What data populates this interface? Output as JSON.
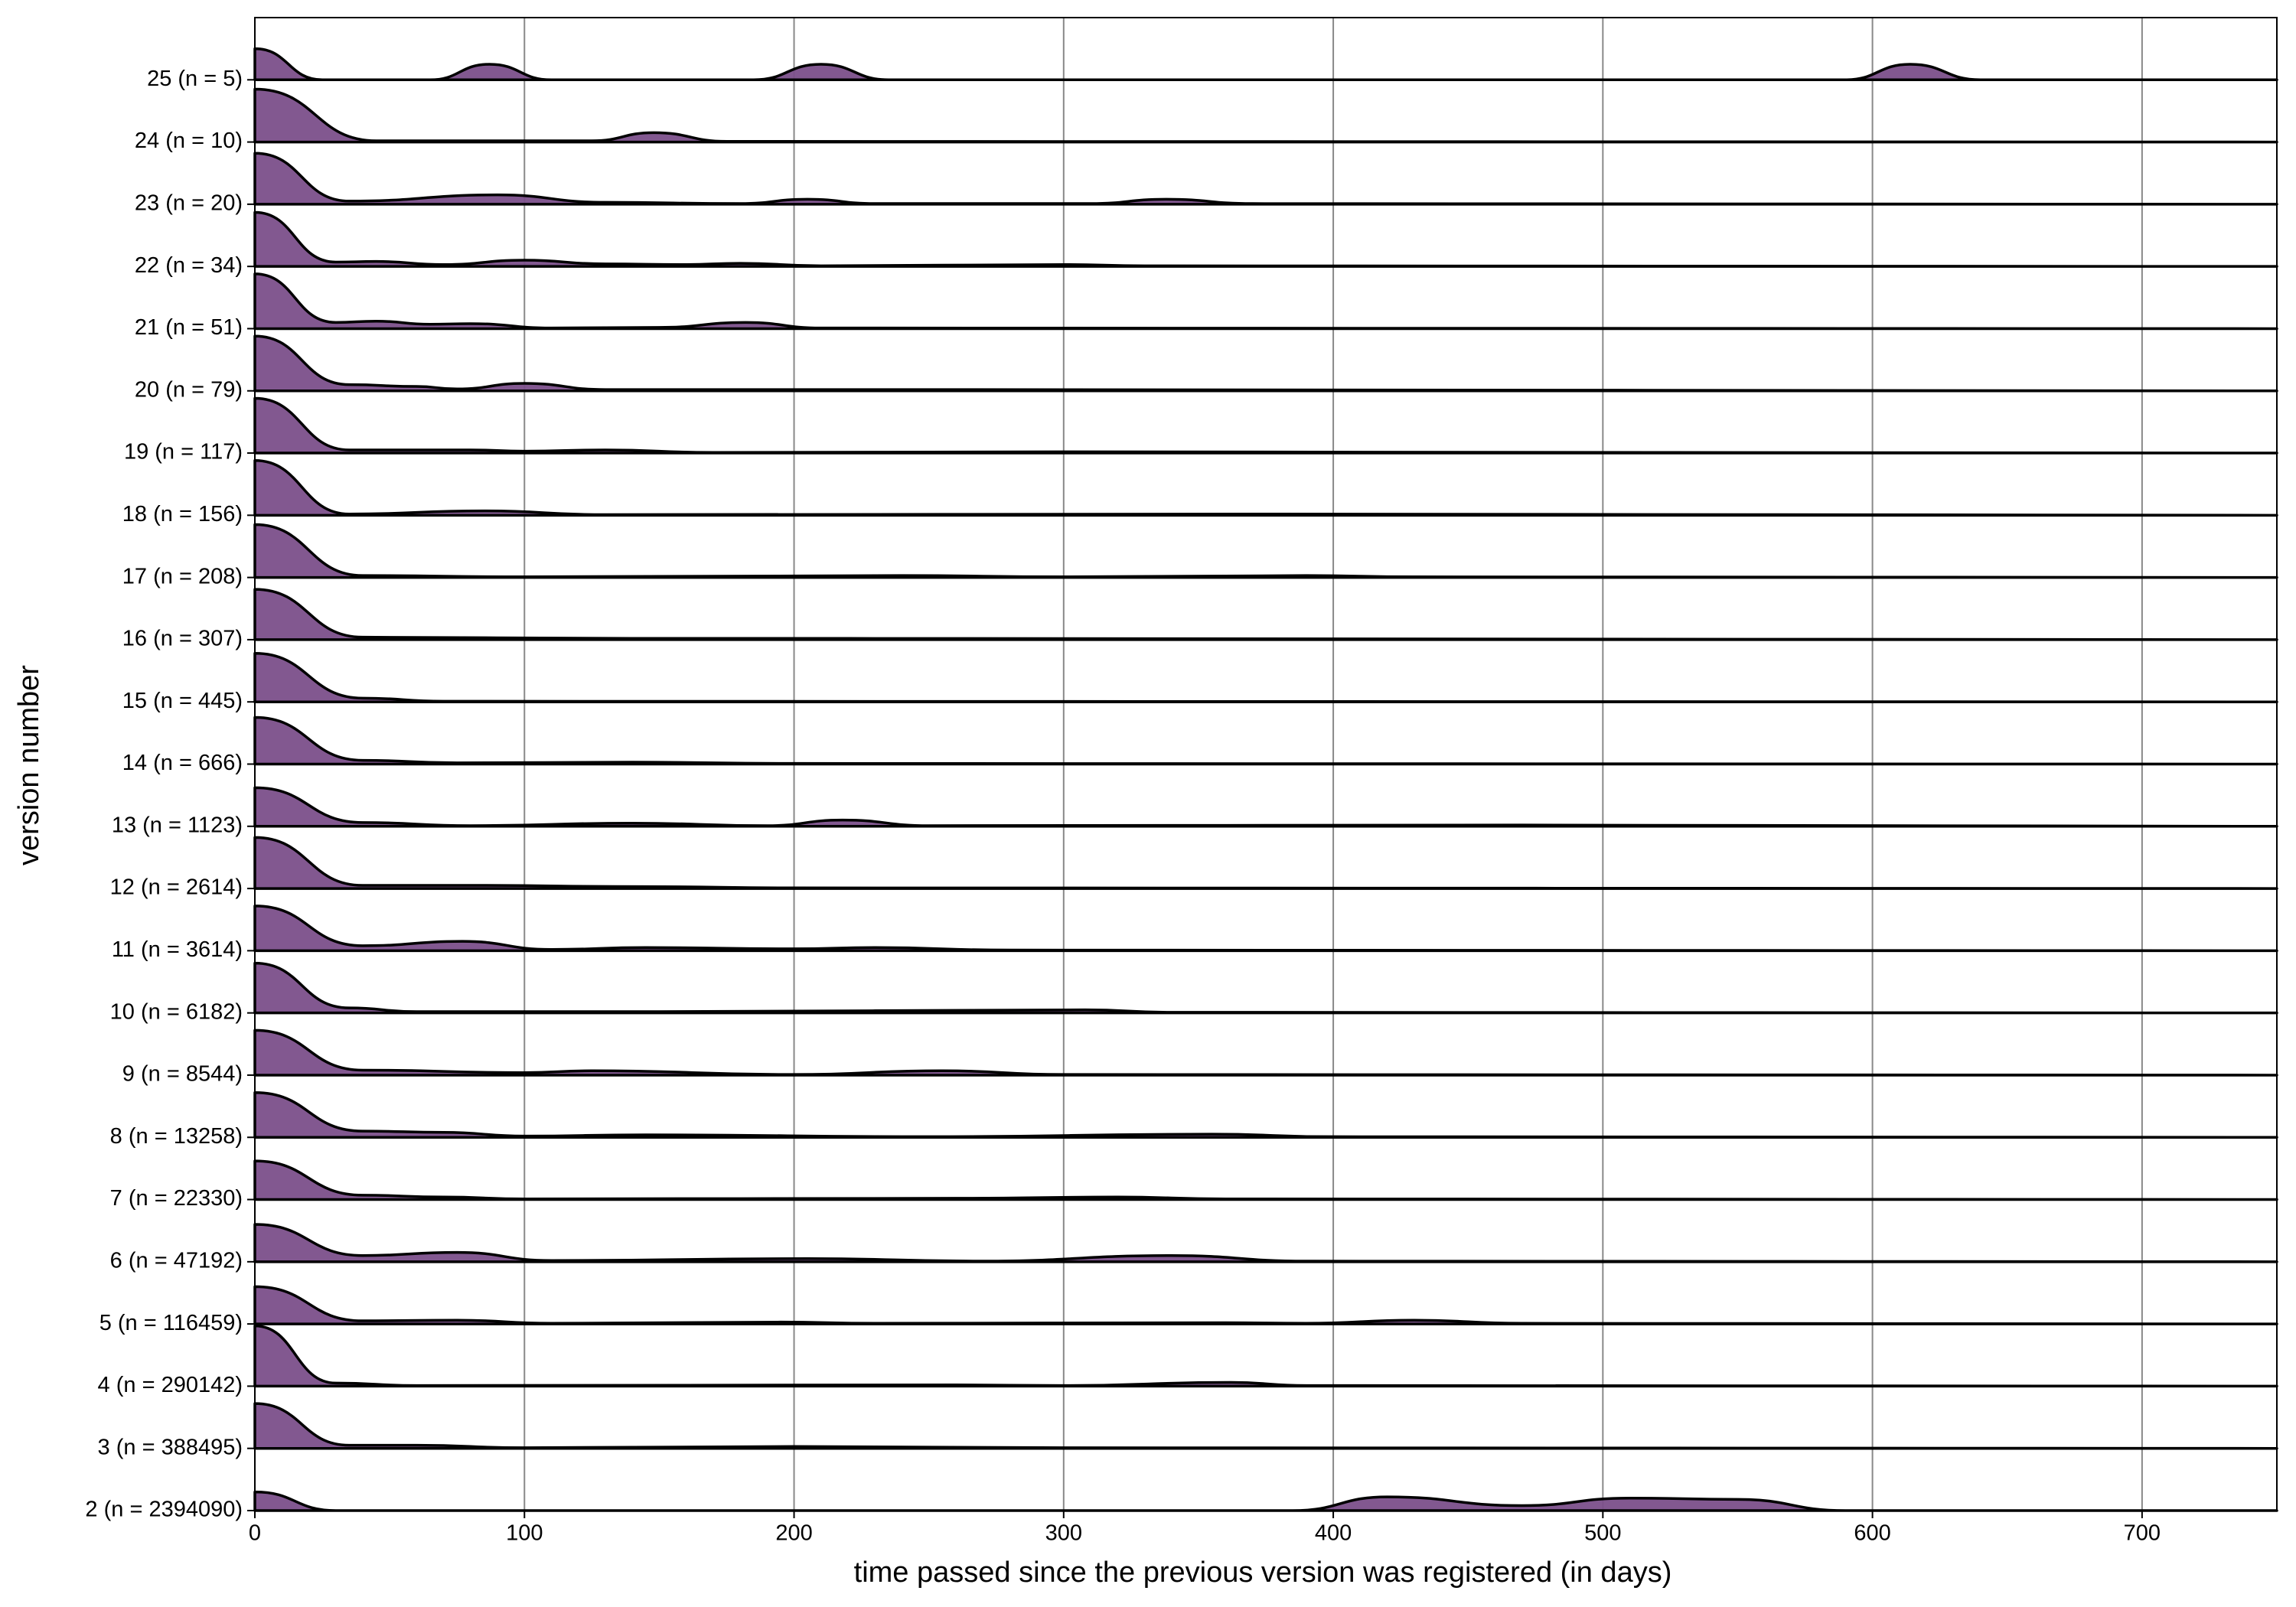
{
  "chart_data": {
    "type": "ridgeline",
    "xlabel": "time passed since the previous version was registered (in days)",
    "ylabel": "version number",
    "xlim": [
      0,
      750
    ],
    "xticks": [
      0,
      100,
      200,
      300,
      400,
      500,
      600,
      700
    ],
    "grid": true,
    "color": "#7b4f8a",
    "series": [
      {
        "name": "25 (n = 5)",
        "x": [
          0,
          25,
          65,
          87,
          110,
          185,
          210,
          235,
          590,
          614,
          640,
          750
        ],
        "values": [
          0.5,
          0,
          0,
          0.25,
          0,
          0,
          0.25,
          0,
          0,
          0.25,
          0,
          0
        ]
      },
      {
        "name": "24 (n = 10)",
        "x": [
          0,
          45,
          125,
          148,
          175,
          750
        ],
        "values": [
          0.85,
          0.02,
          0.02,
          0.15,
          0.01,
          0
        ]
      },
      {
        "name": "23 (n = 20)",
        "x": [
          0,
          35,
          90,
          130,
          180,
          205,
          230,
          310,
          338,
          370,
          750
        ],
        "values": [
          0.82,
          0.05,
          0.15,
          0.03,
          0.01,
          0.08,
          0.01,
          0.01,
          0.08,
          0.01,
          0
        ]
      },
      {
        "name": "22 (n = 34)",
        "x": [
          0,
          30,
          45,
          70,
          100,
          130,
          160,
          180,
          210,
          300,
          330,
          750
        ],
        "values": [
          0.87,
          0.07,
          0.08,
          0.03,
          0.1,
          0.04,
          0.03,
          0.05,
          0.01,
          0.03,
          0.01,
          0
        ]
      },
      {
        "name": "21 (n = 51)",
        "x": [
          0,
          30,
          45,
          65,
          80,
          110,
          150,
          182,
          210,
          750
        ],
        "values": [
          0.88,
          0.1,
          0.12,
          0.07,
          0.08,
          0.01,
          0.02,
          0.1,
          0.01,
          0
        ]
      },
      {
        "name": "20 (n = 79)",
        "x": [
          0,
          35,
          60,
          75,
          100,
          130,
          260,
          750
        ],
        "values": [
          0.88,
          0.1,
          0.07,
          0.03,
          0.12,
          0.02,
          0.02,
          0
        ]
      },
      {
        "name": "19 (n = 117)",
        "x": [
          0,
          35,
          80,
          100,
          130,
          170,
          300,
          750
        ],
        "values": [
          0.88,
          0.05,
          0.05,
          0.03,
          0.05,
          0.01,
          0.02,
          0
        ]
      },
      {
        "name": "18 (n = 156)",
        "x": [
          0,
          35,
          85,
          130,
          380,
          750
        ],
        "values": [
          0.88,
          0.02,
          0.07,
          0.01,
          0.02,
          0
        ]
      },
      {
        "name": "17 (n = 208)",
        "x": [
          0,
          40,
          100,
          240,
          300,
          390,
          430,
          750
        ],
        "values": [
          0.85,
          0.03,
          0.01,
          0.03,
          0.01,
          0.03,
          0.01,
          0
        ]
      },
      {
        "name": "16 (n = 307)",
        "x": [
          0,
          40,
          140,
          220,
          750
        ],
        "values": [
          0.81,
          0.04,
          0.02,
          0.02,
          0
        ]
      },
      {
        "name": "15 (n = 445)",
        "x": [
          0,
          40,
          70,
          750
        ],
        "values": [
          0.78,
          0.06,
          0.01,
          0
        ]
      },
      {
        "name": "14 (n = 666)",
        "x": [
          0,
          40,
          75,
          140,
          200,
          750
        ],
        "values": [
          0.75,
          0.06,
          0.02,
          0.03,
          0.01,
          0
        ]
      },
      {
        "name": "13 (n = 1123)",
        "x": [
          0,
          40,
          80,
          140,
          190,
          218,
          250,
          470,
          750
        ],
        "values": [
          0.62,
          0.06,
          0.01,
          0.05,
          0.01,
          0.1,
          0.01,
          0.02,
          0
        ]
      },
      {
        "name": "12 (n = 2614)",
        "x": [
          0,
          40,
          80,
          145,
          200,
          750
        ],
        "values": [
          0.82,
          0.05,
          0.05,
          0.03,
          0.01,
          0
        ]
      },
      {
        "name": "11 (n = 3614)",
        "x": [
          0,
          40,
          77,
          110,
          145,
          200,
          230,
          280,
          750
        ],
        "values": [
          0.72,
          0.08,
          0.15,
          0.02,
          0.05,
          0.03,
          0.05,
          0.01,
          0
        ]
      },
      {
        "name": "10 (n = 6182)",
        "x": [
          0,
          35,
          60,
          150,
          308,
          340,
          750
        ],
        "values": [
          0.8,
          0.08,
          0.02,
          0.02,
          0.05,
          0.01,
          0
        ]
      },
      {
        "name": "9 (n = 8544)",
        "x": [
          0,
          40,
          100,
          125,
          200,
          255,
          300,
          750
        ],
        "values": [
          0.72,
          0.08,
          0.04,
          0.07,
          0.01,
          0.07,
          0.01,
          0
        ]
      },
      {
        "name": "8 (n = 13258)",
        "x": [
          0,
          40,
          70,
          100,
          145,
          250,
          355,
          400,
          750
        ],
        "values": [
          0.72,
          0.1,
          0.08,
          0.02,
          0.04,
          0.01,
          0.05,
          0.01,
          0
        ]
      },
      {
        "name": "7 (n = 22330)",
        "x": [
          0,
          40,
          70,
          100,
          260,
          320,
          360,
          750
        ],
        "values": [
          0.62,
          0.07,
          0.04,
          0.01,
          0.02,
          0.04,
          0.01,
          0
        ]
      },
      {
        "name": "6 (n = 47192)",
        "x": [
          0,
          40,
          75,
          110,
          205,
          270,
          340,
          390,
          750
        ],
        "values": [
          0.6,
          0.1,
          0.15,
          0.02,
          0.05,
          0.01,
          0.1,
          0.01,
          0
        ]
      },
      {
        "name": "5 (n = 116459)",
        "x": [
          0,
          40,
          75,
          110,
          195,
          230,
          360,
          390,
          430,
          470,
          750
        ],
        "values": [
          0.6,
          0.05,
          0.06,
          0.01,
          0.03,
          0.01,
          0.02,
          0.01,
          0.06,
          0.01,
          0
        ]
      },
      {
        "name": "4 (n = 290142)",
        "x": [
          0,
          30,
          60,
          260,
          300,
          362,
          390,
          750
        ],
        "values": [
          0.97,
          0.05,
          0.01,
          0.02,
          0.01,
          0.06,
          0.01,
          0
        ]
      },
      {
        "name": "3 (n = 388495)",
        "x": [
          0,
          35,
          60,
          100,
          200,
          300,
          750
        ],
        "values": [
          0.72,
          0.05,
          0.05,
          0.01,
          0.03,
          0.01,
          0
        ]
      },
      {
        "name": "2 (n = 2394090)",
        "x": [
          0,
          30,
          385,
          420,
          470,
          510,
          550,
          590,
          750
        ],
        "values": [
          0.3,
          0,
          0,
          0.22,
          0.08,
          0.2,
          0.18,
          0,
          0
        ]
      }
    ]
  }
}
